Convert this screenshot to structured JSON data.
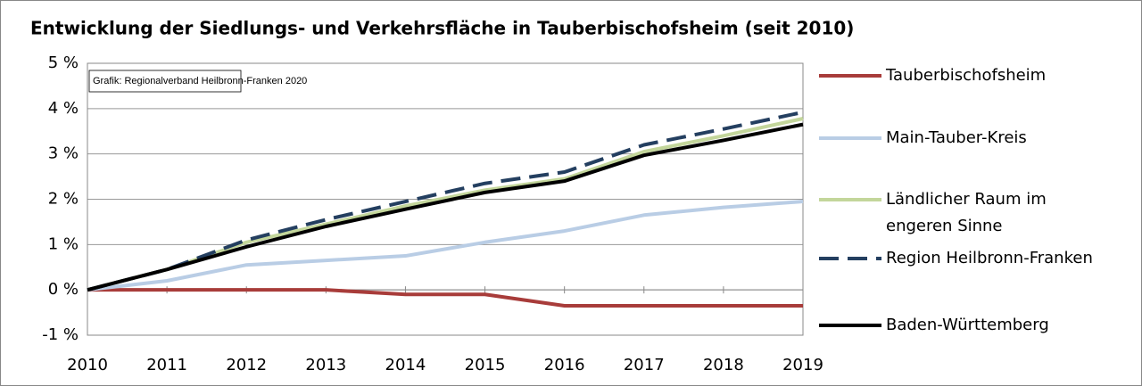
{
  "chart_data": {
    "type": "line",
    "title": "Entwicklung der Siedlungs- und Verkehrsfläche in Tauberbischofsheim (seit 2010)",
    "annotation": "Grafik: Regionalverband Heilbronn-Franken 2020",
    "categories": [
      "2010",
      "2011",
      "2012",
      "2013",
      "2014",
      "2015",
      "2016",
      "2017",
      "2018",
      "2019"
    ],
    "series": [
      {
        "name": "Tauberbischofsheim",
        "color": "#a83c3a",
        "values": [
          0,
          0,
          0,
          0,
          -0.1,
          -0.1,
          -0.35,
          -0.35,
          -0.35,
          -0.35
        ]
      },
      {
        "name": "Main-Tauber-Kreis",
        "color": "#b9cde5",
        "values": [
          0,
          0.2,
          0.55,
          0.65,
          0.75,
          1.05,
          1.3,
          1.65,
          1.82,
          1.95
        ]
      },
      {
        "name": "Ländlicher Raum im engeren Sinne",
        "color": "#c3d69b",
        "values": [
          0,
          0.45,
          1.05,
          1.45,
          1.85,
          2.2,
          2.45,
          3.05,
          3.4,
          3.78
        ]
      },
      {
        "name": "Region Heilbronn-Franken",
        "color": "#243f60",
        "dashed": true,
        "values": [
          0,
          0.45,
          1.1,
          1.55,
          1.95,
          2.35,
          2.6,
          3.2,
          3.55,
          3.92
        ]
      },
      {
        "name": "Baden-Württemberg",
        "color": "#000000",
        "values": [
          0,
          0.45,
          0.95,
          1.4,
          1.78,
          2.15,
          2.4,
          2.97,
          3.3,
          3.65
        ]
      }
    ],
    "ylim": [
      -1,
      5
    ],
    "yticks": [
      {
        "value": -1,
        "label": "-1 %"
      },
      {
        "value": 0,
        "label": "0 %"
      },
      {
        "value": 1,
        "label": "1 %"
      },
      {
        "value": 2,
        "label": "2 %"
      },
      {
        "value": 3,
        "label": "3 %"
      },
      {
        "value": 4,
        "label": "4 %"
      },
      {
        "value": 5,
        "label": "5 %"
      }
    ],
    "grid": true
  }
}
